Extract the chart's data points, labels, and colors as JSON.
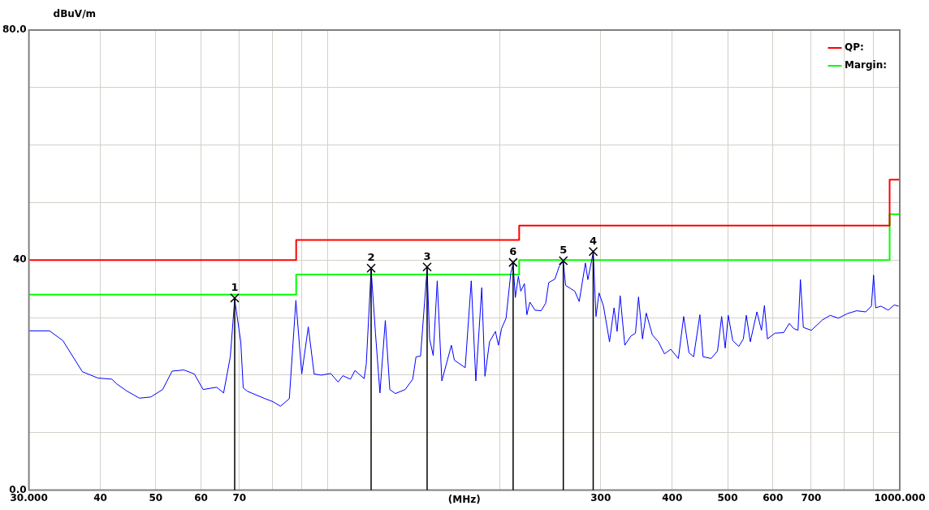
{
  "chart_data": {
    "type": "line",
    "xlabel": "(MHz)",
    "ylabel": "dBuV/m",
    "log": "x",
    "grid": true,
    "legend": "top right",
    "marker": "none",
    "line_style": "solid",
    "xlim": [
      30,
      1000
    ],
    "ylim": [
      0,
      80
    ],
    "xticks": [
      {
        "value": 30,
        "label": "30.000"
      },
      40,
      50,
      60,
      70,
      {
        "value": 80,
        "label": null
      },
      {
        "value": 90,
        "label": null
      },
      {
        "value": 100,
        "label": null
      },
      {
        "value": 200,
        "label": null
      },
      300,
      400,
      500,
      600,
      700,
      {
        "value": 800,
        "label": null
      },
      {
        "value": 900,
        "label": null
      },
      {
        "value": 1000,
        "label": "1000.000"
      }
    ],
    "yticks": [
      {
        "value": 0,
        "label": "0.0"
      },
      {
        "value": 10,
        "label": null
      },
      {
        "value": 20,
        "label": null
      },
      {
        "value": 30,
        "label": null
      },
      40,
      {
        "value": 50,
        "label": null
      },
      {
        "value": 60,
        "label": null
      },
      {
        "value": 70,
        "label": null
      },
      {
        "value": 80,
        "label": "80.0"
      }
    ],
    "series": [
      {
        "type": "line",
        "color": "#0000ff",
        "x": [
          30,
          32.6,
          34.4,
          37.2,
          39.6,
          41.9,
          42.7,
          44.4,
          46.8,
          49.0,
          51.4,
          53.4,
          56.0,
          58.4,
          60.5,
          63.9,
          65.7,
          67.5,
          68.7,
          70.4,
          71.1,
          72.3,
          77.7,
          80.1,
          82.6,
          85.6,
          87.9,
          90,
          92.4,
          94.6,
          97.4,
          101.1,
          104.2,
          106.2,
          109.5,
          111.5,
          115.7,
          116.7,
          119.0,
          121.1,
          123.3,
          126.0,
          128.3,
          131.2,
          136.5,
          140.7,
          142.6,
          145.2,
          149.1,
          150.6,
          152.8,
          155.3,
          158.2,
          164.4,
          166.4,
          173.8,
          178.1,
          181.4,
          185.8,
          188.2,
          191.7,
          196.3,
          198.7,
          201.2,
          204.9,
          208.8,
          210.8,
          212.7,
          215.3,
          217.4,
          220.6,
          222.8,
          225.5,
          230.2,
          236.0,
          240.3,
          243.3,
          249.4,
          254.0,
          258.0,
          260.4,
          265.3,
          270.2,
          275.1,
          282.0,
          284.8,
          291.0,
          294.3,
          297.9,
          303.3,
          310.8,
          316.5,
          320.4,
          324.4,
          330.5,
          338.7,
          345.0,
          349.3,
          354.9,
          360.3,
          369.2,
          378.4,
          387.8,
          397.6,
          410.1,
          418.9,
          427.9,
          436.1,
          447.2,
          452.9,
          467.9,
          480.1,
          488.1,
          495.2,
          501.2,
          510.5,
          523.1,
          532.7,
          539.1,
          547.8,
          562.6,
          573.0,
          579.9,
          587.0,
          605.0,
          626.6,
          640.9,
          652.4,
          663.9,
          670.3,
          678.3,
          700.5,
          732.3,
          755.8,
          780.7,
          810.0,
          840.6,
          872.2,
          892.0,
          900,
          907.5,
          926.9,
          954.6,
          977.9,
          995.5
        ],
        "values": [
          27.7,
          27.7,
          26.0,
          20.6,
          19.5,
          19.3,
          18.5,
          17.3,
          16.0,
          16.2,
          17.5,
          20.7,
          20.9,
          20.2,
          17.5,
          17.9,
          16.9,
          23.2,
          33.2,
          25.8,
          17.8,
          17.2,
          15.9,
          15.4,
          14.6,
          15.9,
          33.0,
          20.2,
          28.4,
          20.2,
          20.0,
          20.3,
          18.8,
          19.9,
          19.3,
          20.8,
          19.4,
          21.9,
          38.4,
          27.3,
          16.9,
          29.5,
          17.5,
          16.8,
          17.5,
          19.3,
          23.2,
          23.3,
          38.6,
          26.3,
          23.4,
          36.4,
          19.0,
          25.2,
          22.6,
          21.3,
          36.4,
          19.0,
          35.2,
          19.8,
          25.8,
          27.6,
          25.2,
          28.1,
          29.9,
          37.7,
          39.4,
          33.5,
          37.2,
          34.6,
          35.9,
          30.5,
          32.7,
          31.3,
          31.2,
          32.5,
          36.1,
          36.7,
          39.0,
          39.7,
          35.6,
          35.1,
          34.6,
          32.8,
          39.5,
          36.6,
          41.3,
          30.2,
          34.3,
          32.0,
          25.8,
          31.7,
          27.6,
          33.8,
          25.2,
          26.8,
          27.3,
          33.6,
          26.3,
          30.8,
          27.0,
          25.8,
          23.7,
          24.5,
          22.9,
          30.2,
          23.9,
          23.2,
          30.5,
          23.2,
          22.9,
          24.2,
          30.2,
          24.7,
          30.4,
          26.0,
          25.0,
          26.3,
          30.4,
          25.8,
          31.0,
          27.8,
          32.1,
          26.3,
          27.3,
          27.4,
          29.0,
          28.1,
          27.8,
          36.6,
          28.3,
          27.8,
          29.6,
          30.4,
          29.9,
          30.7,
          31.2,
          31.0,
          32.0,
          37.4,
          31.7,
          32.0,
          31.3,
          32.2,
          32.0
        ]
      },
      {
        "type": "line",
        "name": "QP:",
        "color": "#ff0000",
        "x": [
          30,
          88,
          88,
          216,
          216,
          960,
          960,
          1000
        ],
        "values": [
          40,
          40,
          43.5,
          43.5,
          46,
          46,
          54,
          54
        ]
      },
      {
        "type": "line",
        "name": "Margin:",
        "color": "#00ff00",
        "x": [
          30,
          88,
          88,
          216,
          216,
          960,
          960,
          1000
        ],
        "values": [
          34,
          34,
          37.5,
          37.5,
          40,
          40,
          48,
          48
        ]
      }
    ],
    "annotations": [
      {
        "text": "1",
        "x": 68.7,
        "y": 33.4
      },
      {
        "text": "2",
        "x": 119.0,
        "y": 38.6
      },
      {
        "text": "3",
        "x": 149.1,
        "y": 38.8
      },
      {
        "text": "4",
        "x": 291.0,
        "y": 41.5
      },
      {
        "text": "5",
        "x": 258.0,
        "y": 39.9
      },
      {
        "text": "6",
        "x": 210.8,
        "y": 39.6
      }
    ]
  }
}
